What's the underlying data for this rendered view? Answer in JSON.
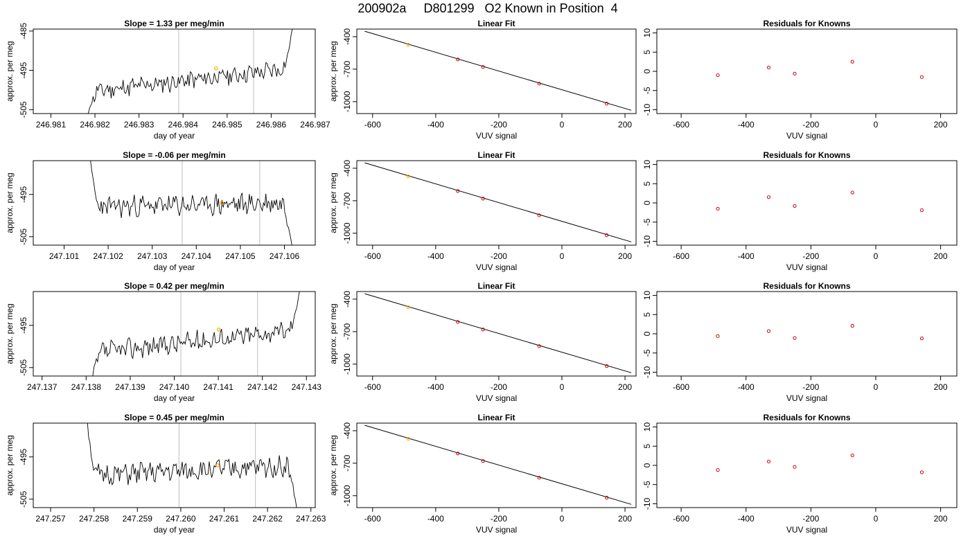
{
  "figure_title": "200902a     D801299   O2 Known in Position  4",
  "colors": {
    "trace": "#000000",
    "marker": "#ffa500",
    "residual": "#cc0000",
    "guide": "#c8c8c8",
    "fit_point": "#cc0000"
  },
  "chart_data": [
    {
      "type": "line",
      "row": 0,
      "col": 0,
      "title": "Slope =  1.33  per meg/min",
      "xlabel": "day of year",
      "ylabel": "approx. per meg",
      "xlim": [
        246.9806,
        246.987
      ],
      "ylim": [
        -506,
        -484.5
      ],
      "xticks": [
        "246.981",
        "246.982",
        "246.983",
        "246.984",
        "246.985",
        "246.986",
        "246.987"
      ],
      "yticks": [
        "-485",
        "-495",
        "-505"
      ],
      "vlines": [
        246.9839,
        246.9856
      ],
      "highlight": {
        "x": 246.98475,
        "y": -494.5
      },
      "trace": {
        "x_start": 246.98185,
        "x_end": 246.98648,
        "start_value": -506,
        "base_start": -500.5,
        "base_end": -494.5,
        "amplitude": 2.0,
        "tail_end": -484.5,
        "seed": 11
      }
    },
    {
      "type": "line",
      "row": 0,
      "col": 1,
      "title": "Linear Fit",
      "xlabel": "VUV signal",
      "ylabel": "approx. per meg",
      "xlim": [
        -650,
        235
      ],
      "ylim": [
        -1110,
        -330
      ],
      "xticks": [
        -600,
        -400,
        -200,
        0,
        200
      ],
      "yticks": [
        -400,
        -700,
        -1000
      ],
      "line": {
        "x": [
          -625,
          220
        ],
        "y": [
          -350,
          -1080
        ]
      },
      "points": {
        "x": [
          -487,
          -330,
          -250,
          -72,
          142
        ],
        "y": [
          -475,
          -610,
          -680,
          -834,
          -1018
        ]
      },
      "highlight_index": 0
    },
    {
      "type": "scatter",
      "row": 0,
      "col": 2,
      "title": "Residuals for Knowns",
      "xlabel": "VUV signal",
      "ylabel": "",
      "xlim": [
        -675,
        250
      ],
      "ylim": [
        -11,
        11
      ],
      "xticks": [
        -600,
        -400,
        -200,
        0,
        200
      ],
      "yticks": [
        10,
        5,
        0,
        -5,
        -10
      ],
      "points": {
        "x": [
          -487,
          -330,
          -250,
          -72,
          142
        ],
        "y": [
          -1.0,
          1.0,
          -0.6,
          2.5,
          -1.5
        ]
      }
    },
    {
      "type": "line",
      "row": 1,
      "col": 0,
      "title": "Slope =  -0.06  per meg/min",
      "xlabel": "day of year",
      "ylabel": "approx. per meg",
      "xlim": [
        247.1003,
        247.1067
      ],
      "ylim": [
        -507,
        -487
      ],
      "xticks": [
        "247.101",
        "247.102",
        "247.103",
        "247.104",
        "247.105",
        "247.106"
      ],
      "yticks": [
        "-495",
        "-505"
      ],
      "vlines": [
        247.10368,
        247.10544
      ],
      "highlight": {
        "x": 247.10458,
        "y": -497
      },
      "trace": {
        "x_start": 247.1016,
        "x_end": 247.10617,
        "start_value": -487,
        "base_start": -498,
        "base_end": -497,
        "amplitude": 2.1,
        "tail_end": -507,
        "seed": 23
      }
    },
    {
      "type": "line",
      "row": 1,
      "col": 1,
      "title": "Linear Fit",
      "xlabel": "VUV signal",
      "ylabel": "approx. per meg",
      "xlim": [
        -650,
        235
      ],
      "ylim": [
        -1110,
        -330
      ],
      "xticks": [
        -600,
        -400,
        -200,
        0,
        200
      ],
      "yticks": [
        -400,
        -700,
        -1000
      ],
      "line": {
        "x": [
          -625,
          220
        ],
        "y": [
          -350,
          -1080
        ]
      },
      "points": {
        "x": [
          -487,
          -330,
          -250,
          -72,
          142
        ],
        "y": [
          -475,
          -610,
          -680,
          -834,
          -1018
        ]
      },
      "highlight_index": 0
    },
    {
      "type": "scatter",
      "row": 1,
      "col": 2,
      "title": "Residuals for Knowns",
      "xlabel": "VUV signal",
      "ylabel": "",
      "xlim": [
        -675,
        250
      ],
      "ylim": [
        -11,
        11
      ],
      "xticks": [
        -600,
        -400,
        -200,
        0,
        200
      ],
      "yticks": [
        10,
        5,
        0,
        -5,
        -10
      ],
      "points": {
        "x": [
          -487,
          -330,
          -250,
          -72,
          142
        ],
        "y": [
          -1.5,
          1.5,
          -0.8,
          2.7,
          -1.9
        ]
      }
    },
    {
      "type": "line",
      "row": 2,
      "col": 0,
      "title": "Slope =  0.42  per meg/min",
      "xlabel": "day of year",
      "ylabel": "approx. per meg",
      "xlim": [
        247.1368,
        247.1432
      ],
      "ylim": [
        -507,
        -487
      ],
      "xticks": [
        "247.137",
        "247.138",
        "247.139",
        "247.140",
        "247.141",
        "247.142",
        "247.143"
      ],
      "yticks": [
        "-495",
        "-505"
      ],
      "vlines": [
        247.14015,
        247.14189
      ],
      "highlight": {
        "x": 247.14101,
        "y": -496
      },
      "trace": {
        "x_start": 247.13815,
        "x_end": 247.14284,
        "start_value": -507,
        "base_start": -501.5,
        "base_end": -496,
        "amplitude": 2.0,
        "tail_end": -487,
        "seed": 37
      }
    },
    {
      "type": "line",
      "row": 2,
      "col": 1,
      "title": "Linear Fit",
      "xlabel": "VUV signal",
      "ylabel": "approx. per meg",
      "xlim": [
        -650,
        235
      ],
      "ylim": [
        -1110,
        -330
      ],
      "xticks": [
        -600,
        -400,
        -200,
        0,
        200
      ],
      "yticks": [
        -400,
        -700,
        -1000
      ],
      "line": {
        "x": [
          -625,
          220
        ],
        "y": [
          -350,
          -1080
        ]
      },
      "points": {
        "x": [
          -487,
          -330,
          -250,
          -72,
          142
        ],
        "y": [
          -475,
          -610,
          -680,
          -834,
          -1018
        ]
      },
      "highlight_index": 0
    },
    {
      "type": "scatter",
      "row": 2,
      "col": 2,
      "title": "Residuals for Knowns",
      "xlabel": "VUV signal",
      "ylabel": "",
      "xlim": [
        -675,
        250
      ],
      "ylim": [
        -11,
        11
      ],
      "xticks": [
        -600,
        -400,
        -200,
        0,
        200
      ],
      "yticks": [
        10,
        5,
        0,
        -5,
        -10
      ],
      "points": {
        "x": [
          -487,
          -330,
          -250,
          -72,
          142
        ],
        "y": [
          -0.6,
          0.7,
          -1.1,
          2.1,
          -1.2
        ]
      }
    },
    {
      "type": "line",
      "row": 3,
      "col": 0,
      "title": "Slope =  0.45  per meg/min",
      "xlabel": "day of year",
      "ylabel": "approx. per meg",
      "xlim": [
        247.2566,
        247.2631
      ],
      "ylim": [
        -507,
        -487
      ],
      "xticks": [
        "247.257",
        "247.258",
        "247.259",
        "247.260",
        "247.261",
        "247.262",
        "247.263"
      ],
      "yticks": [
        "-495",
        "-505"
      ],
      "vlines": [
        247.25996,
        247.26172
      ],
      "highlight": {
        "x": 247.26085,
        "y": -497
      },
      "trace": {
        "x_start": 247.25785,
        "x_end": 247.26267,
        "start_value": -487,
        "base_start": -499.5,
        "base_end": -497,
        "amplitude": 2.1,
        "tail_end": -507,
        "seed": 51
      }
    },
    {
      "type": "line",
      "row": 3,
      "col": 1,
      "title": "Linear Fit",
      "xlabel": "VUV signal",
      "ylabel": "approx. per meg",
      "xlim": [
        -650,
        235
      ],
      "ylim": [
        -1110,
        -330
      ],
      "xticks": [
        -600,
        -400,
        -200,
        0,
        200
      ],
      "yticks": [
        -400,
        -700,
        -1000
      ],
      "line": {
        "x": [
          -625,
          220
        ],
        "y": [
          -350,
          -1080
        ]
      },
      "points": {
        "x": [
          -487,
          -330,
          -250,
          -72,
          142
        ],
        "y": [
          -475,
          -610,
          -680,
          -834,
          -1018
        ]
      },
      "highlight_index": 0
    },
    {
      "type": "scatter",
      "row": 3,
      "col": 2,
      "title": "Residuals for Knowns",
      "xlabel": "VUV signal",
      "ylabel": "",
      "xlim": [
        -675,
        250
      ],
      "ylim": [
        -11,
        11
      ],
      "xticks": [
        -600,
        -400,
        -200,
        0,
        200
      ],
      "yticks": [
        10,
        5,
        0,
        -5,
        -10
      ],
      "points": {
        "x": [
          -487,
          -330,
          -250,
          -72,
          142
        ],
        "y": [
          -1.2,
          1.0,
          -0.4,
          2.6,
          -1.8
        ]
      }
    }
  ]
}
